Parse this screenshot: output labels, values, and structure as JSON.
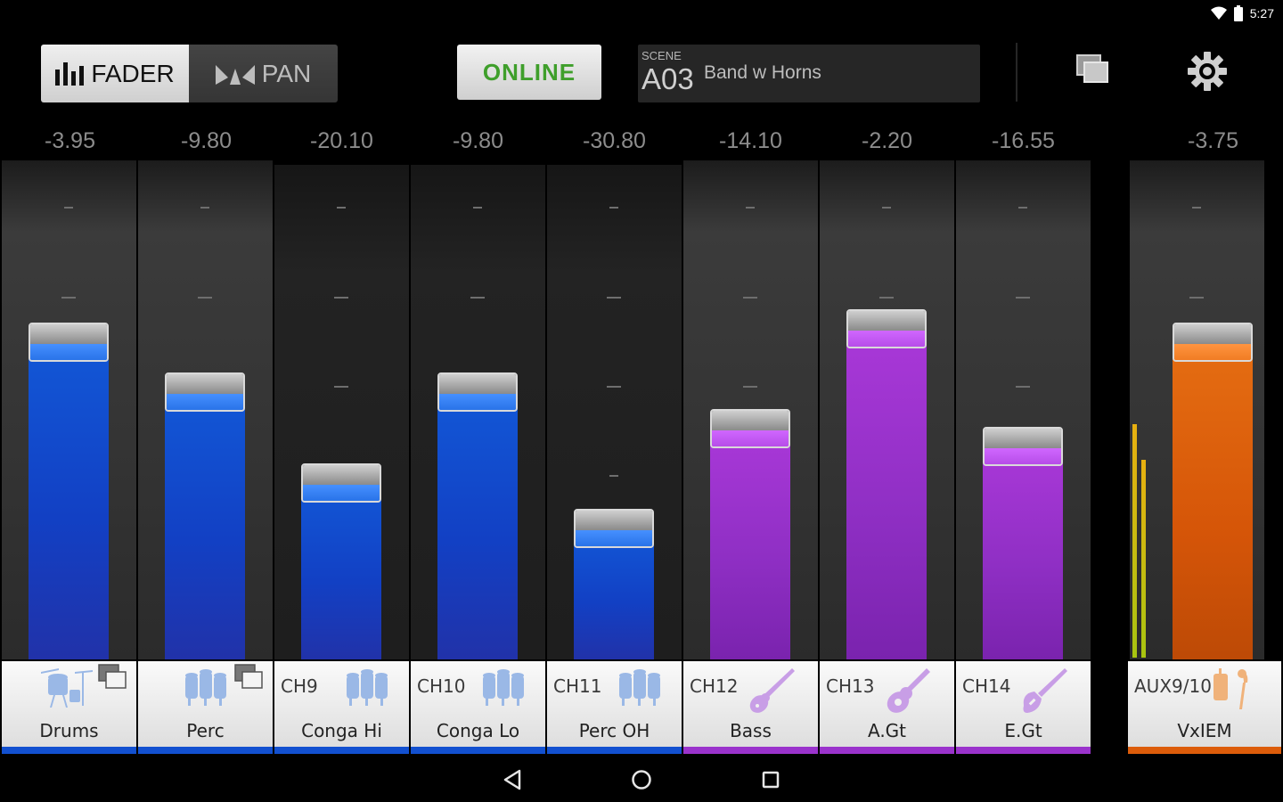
{
  "status_bar": {
    "time": "5:27"
  },
  "header": {
    "fader_label": "FADER",
    "pan_label": "PAN",
    "online_label": "ONLINE",
    "scene_caption": "SCENE",
    "scene_number": "A03",
    "scene_name": "Band w Horns"
  },
  "colors": {
    "blue": "#1250d0",
    "purple": "#9a33cc",
    "orange": "#dc5c0a"
  },
  "channels": [
    {
      "value": "-3.95",
      "id": "",
      "name": "Drums",
      "level": 0.69,
      "color": "blue",
      "icon": "drumkit-icon",
      "linked": true
    },
    {
      "value": "-9.80",
      "id": "",
      "name": "Perc",
      "level": 0.58,
      "color": "blue",
      "icon": "percussion-icon",
      "linked": true
    },
    {
      "value": "-20.10",
      "id": "CH9",
      "name": "Conga Hi",
      "level": 0.38,
      "color": "blue",
      "icon": "percussion-icon",
      "linked": false
    },
    {
      "value": "-9.80",
      "id": "CH10",
      "name": "Conga Lo",
      "level": 0.58,
      "color": "blue",
      "icon": "percussion-icon",
      "linked": false
    },
    {
      "value": "-30.80",
      "id": "CH11",
      "name": "Perc OH",
      "level": 0.28,
      "color": "blue",
      "icon": "percussion-icon",
      "linked": false
    },
    {
      "value": "-14.10",
      "id": "CH12",
      "name": "Bass",
      "level": 0.5,
      "color": "purple",
      "icon": "bass-guitar-icon",
      "linked": false
    },
    {
      "value": "-2.20",
      "id": "CH13",
      "name": "A.Gt",
      "level": 0.72,
      "color": "purple",
      "icon": "acoustic-guitar-icon",
      "linked": false
    },
    {
      "value": "-16.55",
      "id": "CH14",
      "name": "E.Gt",
      "level": 0.46,
      "color": "purple",
      "icon": "electric-guitar-icon",
      "linked": false
    },
    {
      "value": "-3.75",
      "id": "AUX9/10",
      "name": "VxIEM",
      "level": 0.69,
      "color": "orange",
      "icon": "in-ear-monitor-icon",
      "linked": false
    }
  ]
}
